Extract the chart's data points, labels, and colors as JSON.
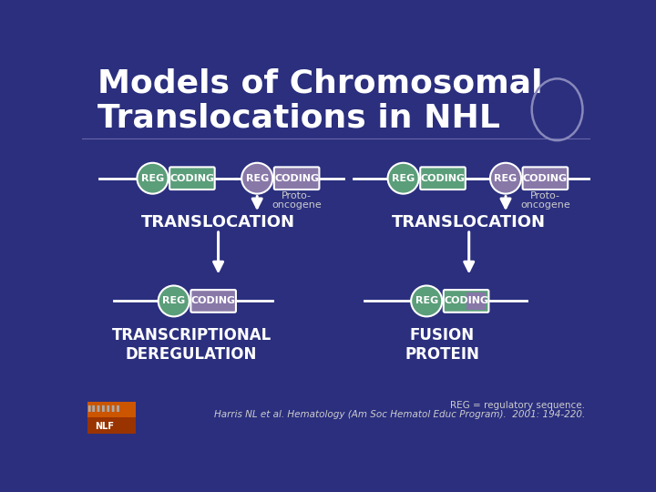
{
  "bg_color": "#2B2F7E",
  "title_color": "#FFFFFF",
  "title": "Models of Chromosomal\nTranslocations in NHL",
  "title_fontsize": 26,
  "title_fontweight": "bold",
  "green_reg_color": "#5B9E7A",
  "green_coding_color": "#5B9E7A",
  "purple_reg_color": "#8878A8",
  "gray_coding_color": "#8878A8",
  "mixed_coding_left": "#8878A8",
  "fusion_coding_color_left": "#5B9E7A",
  "fusion_coding_color_right": "#8878A8",
  "white": "#FFFFFF",
  "line_color": "#FFFFFF",
  "proto_color": "#CCCCCC",
  "footer_color": "#CCCCCC",
  "deco_circle_color": "#8888BB",
  "ref_line1": "REG = regulatory sequence.",
  "ref_line2": "Harris NL et al. Hematology (Am Soc Hematol Educ Program).  2001: 194-220."
}
